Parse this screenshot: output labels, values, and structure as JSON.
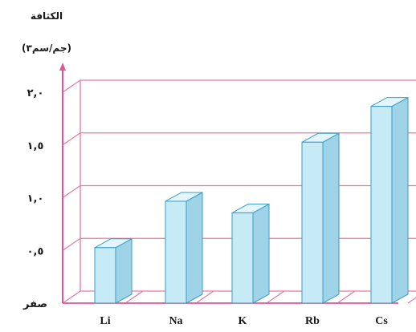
{
  "chart_data": {
    "type": "bar",
    "ylabel": "الكثافة",
    "yunit": "(جم/سم٣)",
    "categories": [
      "Li",
      "Na",
      "K",
      "Rb",
      "Cs"
    ],
    "values": [
      0.53,
      0.97,
      0.86,
      1.53,
      1.87
    ],
    "yticks": [
      0,
      0.5,
      1.0,
      1.5,
      2.0
    ],
    "yticklabels": [
      "صفر",
      "٠,٥",
      "١,٠",
      "١,٥",
      "٢,٠"
    ],
    "ylim": [
      0,
      2.0
    ],
    "grid": true,
    "colors": {
      "grid": "#e47aa8",
      "axis": "#e0559a",
      "bar_front": "#c6eaf6",
      "bar_side": "#9fd4e8",
      "bar_top": "#e4f6fc",
      "bar_edge": "#3a9cc4"
    }
  }
}
